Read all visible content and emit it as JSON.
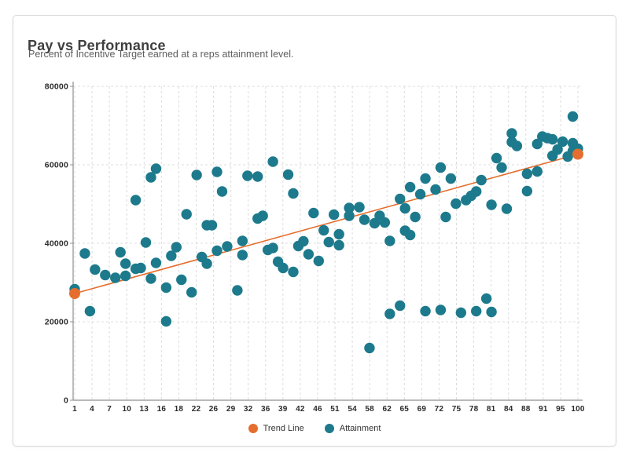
{
  "card": {
    "title": "Pay vs Performance",
    "subtitle": "Percent of Incentive Target earned at a reps attainment level."
  },
  "colors": {
    "trend": "#e56e2e",
    "attainment": "#1d7a8c",
    "grid": "#dcdcdc",
    "axis": "#8f8f8f",
    "tick_text": "#2b2b2b",
    "card_border": "#d8d8d8"
  },
  "legend": [
    {
      "label": "Trend Line",
      "color": "#e56e2e"
    },
    {
      "label": "Attainment",
      "color": "#1d7a8c"
    }
  ],
  "chart_data": {
    "type": "scatter",
    "title": "Pay vs Performance",
    "subtitle": "Percent of Incentive Target earned at a reps attainment level.",
    "xlabel": "",
    "ylabel": "",
    "grid": "dashed",
    "legend_position": "bottom-center",
    "x_axis": {
      "min": 1,
      "max": 100,
      "ticks": [
        1,
        4,
        7,
        10,
        13,
        16,
        18,
        22,
        26,
        29,
        32,
        36,
        39,
        42,
        46,
        51,
        54,
        58,
        62,
        65,
        69,
        72,
        75,
        78,
        81,
        84,
        88,
        91,
        95,
        100
      ]
    },
    "y_axis": {
      "min": 0,
      "max": 80000,
      "ticks": [
        0,
        20000,
        40000,
        60000,
        80000
      ]
    },
    "series": [
      {
        "name": "Trend Line",
        "type": "line",
        "color": "#e56e2e",
        "endpoint_markers": true,
        "points_xy": [
          [
            1,
            27200
          ],
          [
            100,
            62700
          ]
        ]
      },
      {
        "name": "Attainment",
        "type": "scatter",
        "color": "#1d7a8c",
        "points_xy": [
          [
            1,
            28300
          ],
          [
            3,
            37400
          ],
          [
            4,
            22700
          ],
          [
            5,
            33300
          ],
          [
            7,
            31900
          ],
          [
            9,
            31200
          ],
          [
            10,
            37700
          ],
          [
            11,
            34800
          ],
          [
            11,
            31700
          ],
          [
            13,
            51000
          ],
          [
            13,
            33500
          ],
          [
            14,
            33700
          ],
          [
            15,
            40200
          ],
          [
            16,
            56800
          ],
          [
            16,
            31000
          ],
          [
            17,
            59000
          ],
          [
            17,
            35000
          ],
          [
            19,
            28700
          ],
          [
            19,
            20100
          ],
          [
            20,
            36800
          ],
          [
            21,
            39000
          ],
          [
            22,
            30700
          ],
          [
            23,
            47400
          ],
          [
            24,
            27500
          ],
          [
            25,
            57400
          ],
          [
            26,
            36500
          ],
          [
            27,
            44600
          ],
          [
            27,
            34800
          ],
          [
            28,
            44600
          ],
          [
            29,
            58200
          ],
          [
            29,
            38100
          ],
          [
            30,
            53200
          ],
          [
            31,
            39200
          ],
          [
            33,
            28000
          ],
          [
            34,
            40600
          ],
          [
            34,
            37000
          ],
          [
            35,
            57200
          ],
          [
            37,
            57000
          ],
          [
            37,
            46300
          ],
          [
            38,
            47000
          ],
          [
            39,
            38300
          ],
          [
            40,
            60800
          ],
          [
            40,
            38800
          ],
          [
            41,
            35300
          ],
          [
            42,
            33700
          ],
          [
            43,
            57500
          ],
          [
            44,
            52700
          ],
          [
            44,
            32700
          ],
          [
            45,
            39300
          ],
          [
            46,
            40500
          ],
          [
            47,
            37200
          ],
          [
            48,
            47700
          ],
          [
            49,
            35500
          ],
          [
            50,
            43300
          ],
          [
            51,
            40300
          ],
          [
            52,
            47300
          ],
          [
            53,
            42300
          ],
          [
            53,
            39500
          ],
          [
            55,
            49000
          ],
          [
            55,
            47000
          ],
          [
            57,
            49200
          ],
          [
            58,
            46000
          ],
          [
            59,
            13300
          ],
          [
            60,
            45100
          ],
          [
            61,
            47000
          ],
          [
            62,
            45300
          ],
          [
            63,
            40600
          ],
          [
            63,
            22000
          ],
          [
            65,
            51300
          ],
          [
            65,
            24100
          ],
          [
            66,
            48900
          ],
          [
            66,
            43200
          ],
          [
            67,
            54300
          ],
          [
            67,
            42100
          ],
          [
            68,
            46700
          ],
          [
            69,
            52500
          ],
          [
            70,
            56500
          ],
          [
            70,
            22700
          ],
          [
            72,
            53700
          ],
          [
            73,
            59300
          ],
          [
            73,
            23000
          ],
          [
            74,
            46700
          ],
          [
            75,
            56500
          ],
          [
            76,
            50100
          ],
          [
            77,
            22300
          ],
          [
            78,
            51000
          ],
          [
            79,
            52100
          ],
          [
            80,
            53200
          ],
          [
            80,
            22700
          ],
          [
            81,
            56100
          ],
          [
            82,
            25900
          ],
          [
            83,
            49800
          ],
          [
            83,
            22500
          ],
          [
            84,
            61700
          ],
          [
            85,
            59300
          ],
          [
            86,
            48800
          ],
          [
            87,
            68000
          ],
          [
            87,
            65800
          ],
          [
            88,
            64800
          ],
          [
            90,
            57700
          ],
          [
            90,
            53300
          ],
          [
            92,
            65300
          ],
          [
            92,
            58300
          ],
          [
            93,
            67200
          ],
          [
            94,
            66800
          ],
          [
            95,
            66500
          ],
          [
            95,
            62300
          ],
          [
            96,
            63900
          ],
          [
            97,
            65900
          ],
          [
            98,
            62100
          ],
          [
            99,
            72300
          ],
          [
            99,
            65500
          ],
          [
            99,
            63500
          ],
          [
            100,
            64100
          ]
        ]
      }
    ]
  }
}
